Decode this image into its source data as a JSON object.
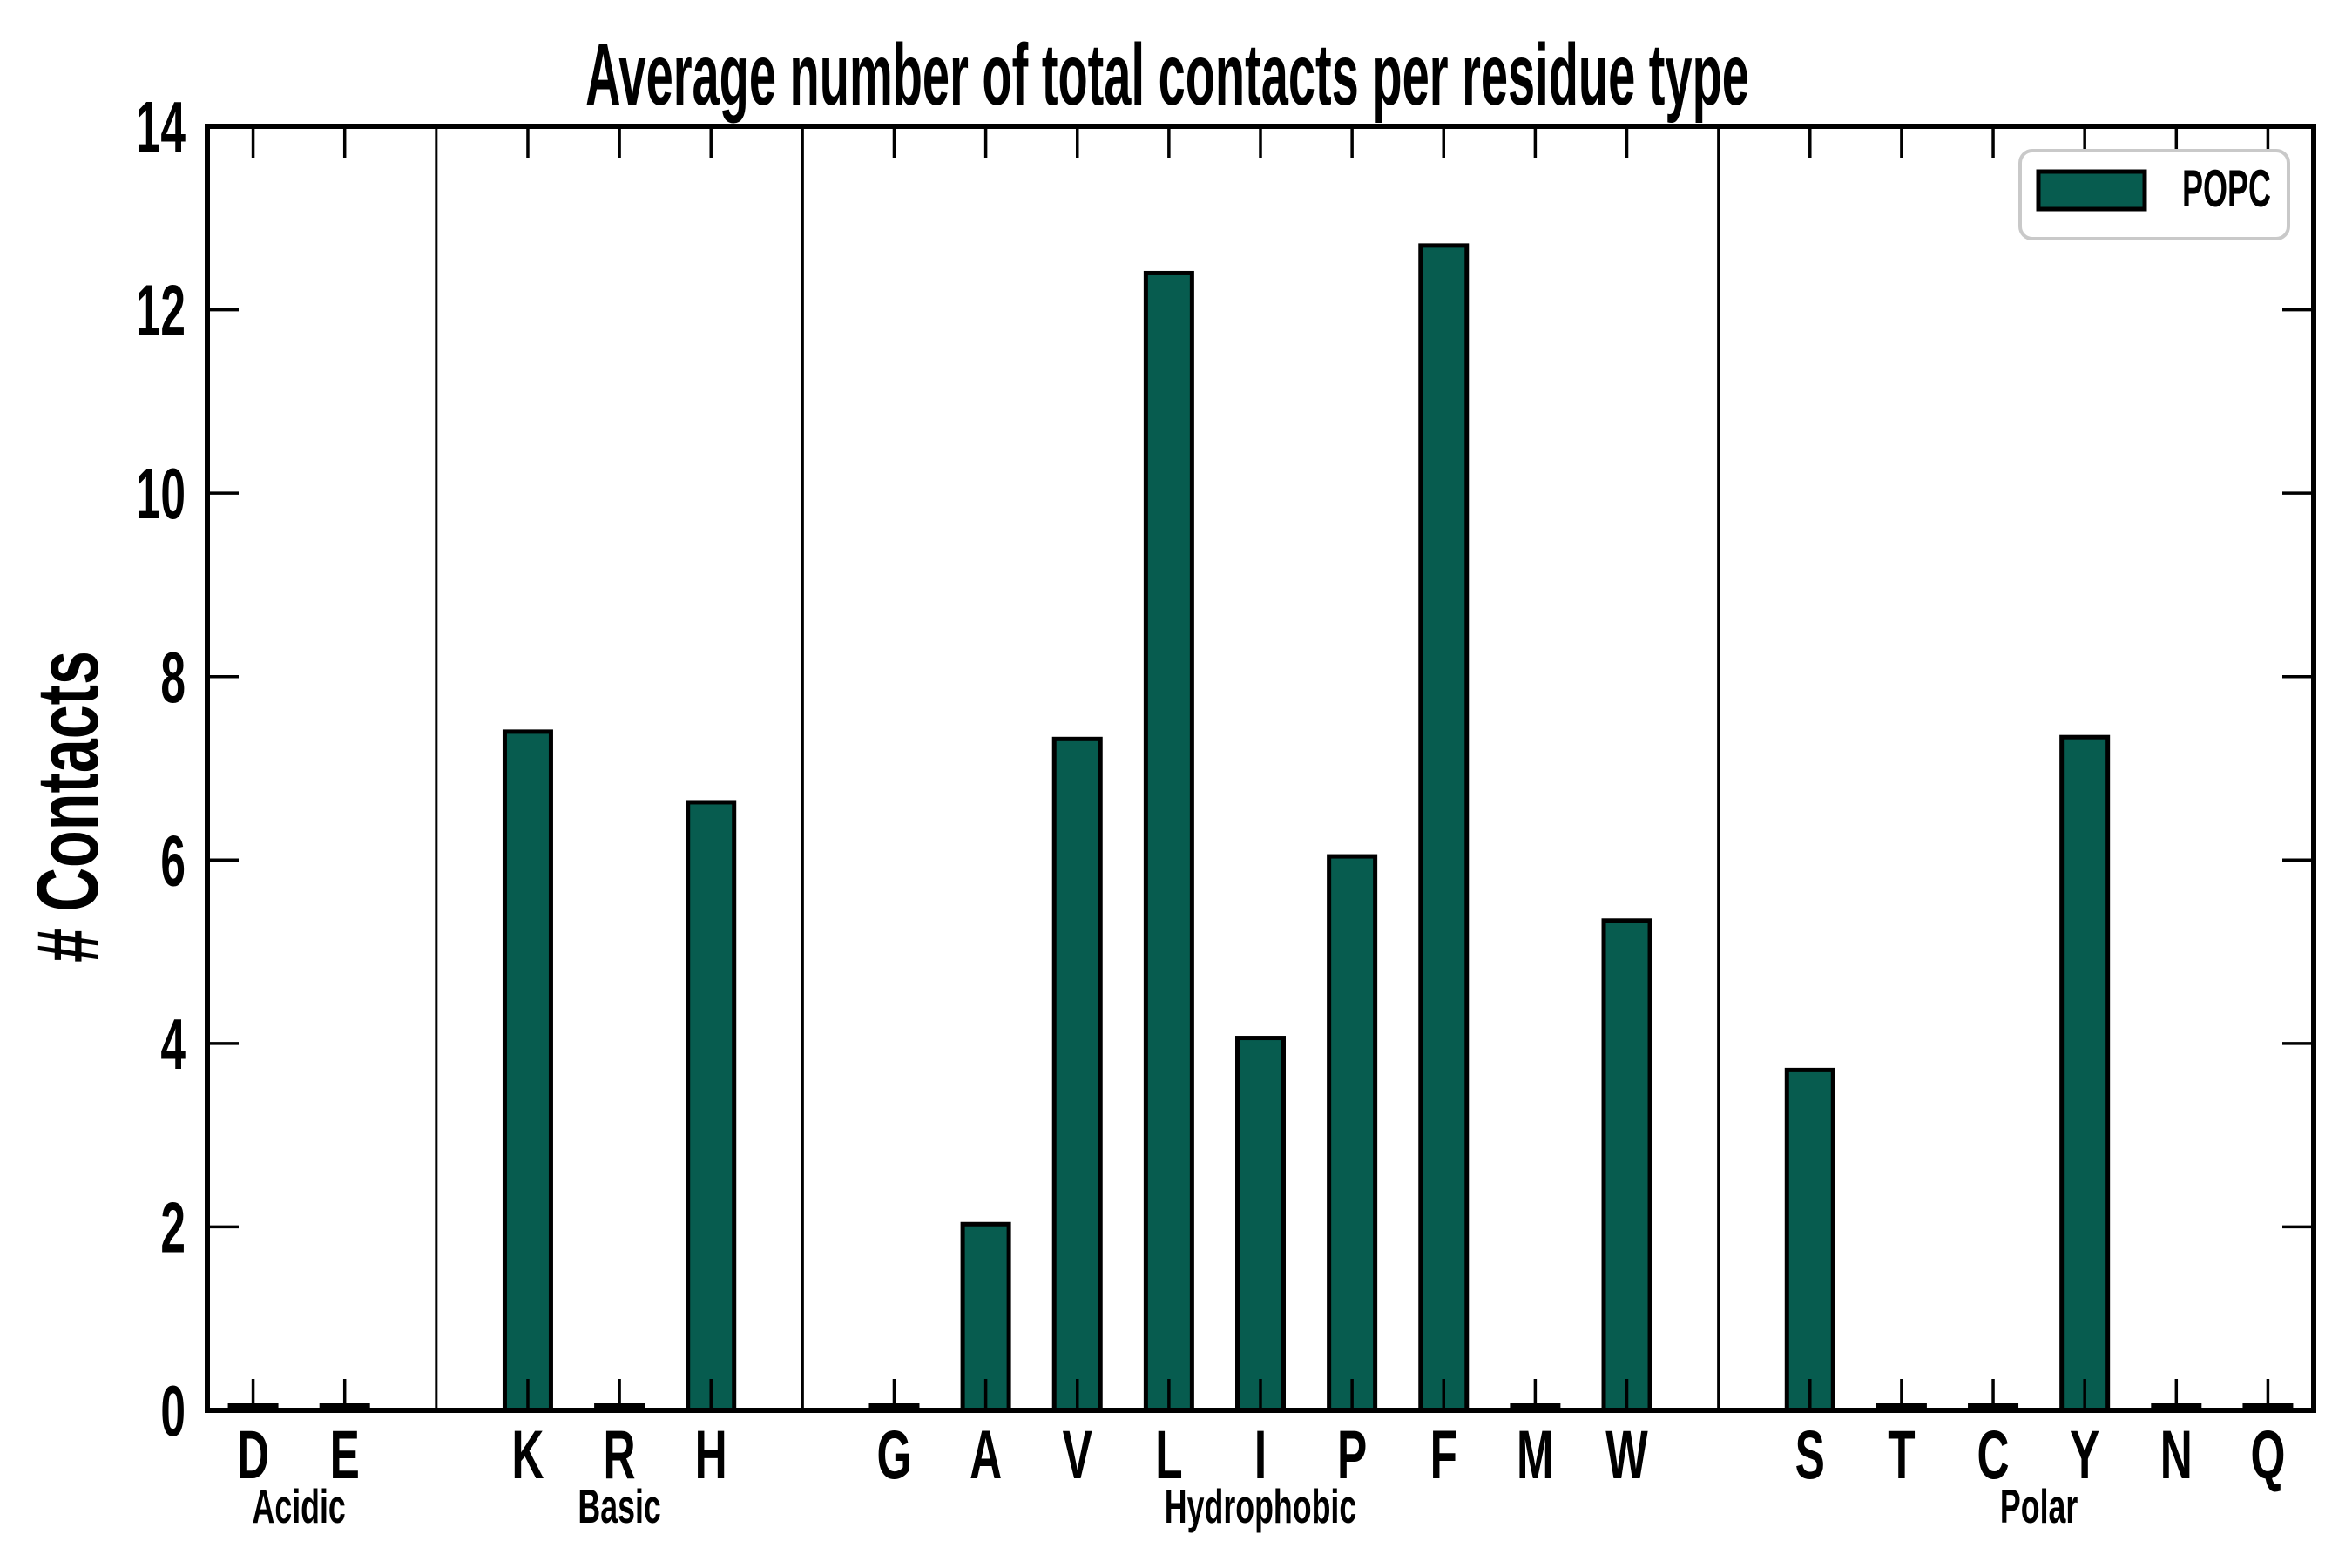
{
  "figure": {
    "background": "#ffffff",
    "title": "Average number of total contacts per residue type"
  },
  "chart_data": {
    "type": "bar",
    "title": "Average number of total contacts per residue type",
    "xlabel": "",
    "ylabel": "# Contacts",
    "ylim": [
      0,
      14
    ],
    "yticks": [
      0,
      2,
      4,
      6,
      8,
      10,
      12,
      14
    ],
    "grid": false,
    "tick_direction": "in",
    "bar_color": "#075c4f",
    "bar_edge_color": "#000000",
    "separator_color": "#000000",
    "legend": {
      "position": "upper right",
      "entries": [
        {
          "label": "POPC",
          "swatch_color": "#075c4f",
          "swatch_edge_color": "#000000"
        }
      ]
    },
    "categories": [
      "D",
      "E",
      "K",
      "R",
      "H",
      "G",
      "A",
      "V",
      "L",
      "I",
      "P",
      "F",
      "M",
      "W",
      "S",
      "T",
      "C",
      "Y",
      "N",
      "Q"
    ],
    "series": [
      {
        "name": "POPC",
        "values": [
          0,
          0,
          7.4,
          0,
          6.63,
          0,
          2.03,
          7.32,
          12.4,
          4.06,
          6.04,
          12.7,
          0,
          5.34,
          3.71,
          0,
          0,
          7.34,
          0,
          0
        ]
      }
    ],
    "groups": [
      {
        "label": "Acidic",
        "categories": [
          "D",
          "E"
        ]
      },
      {
        "label": "Basic",
        "categories": [
          "K",
          "R",
          "H"
        ]
      },
      {
        "label": "Hydrophobic",
        "categories": [
          "G",
          "A",
          "V",
          "L",
          "I",
          "P",
          "F",
          "M",
          "W"
        ]
      },
      {
        "label": "Polar",
        "categories": [
          "S",
          "T",
          "C",
          "Y",
          "N",
          "Q"
        ]
      }
    ]
  }
}
